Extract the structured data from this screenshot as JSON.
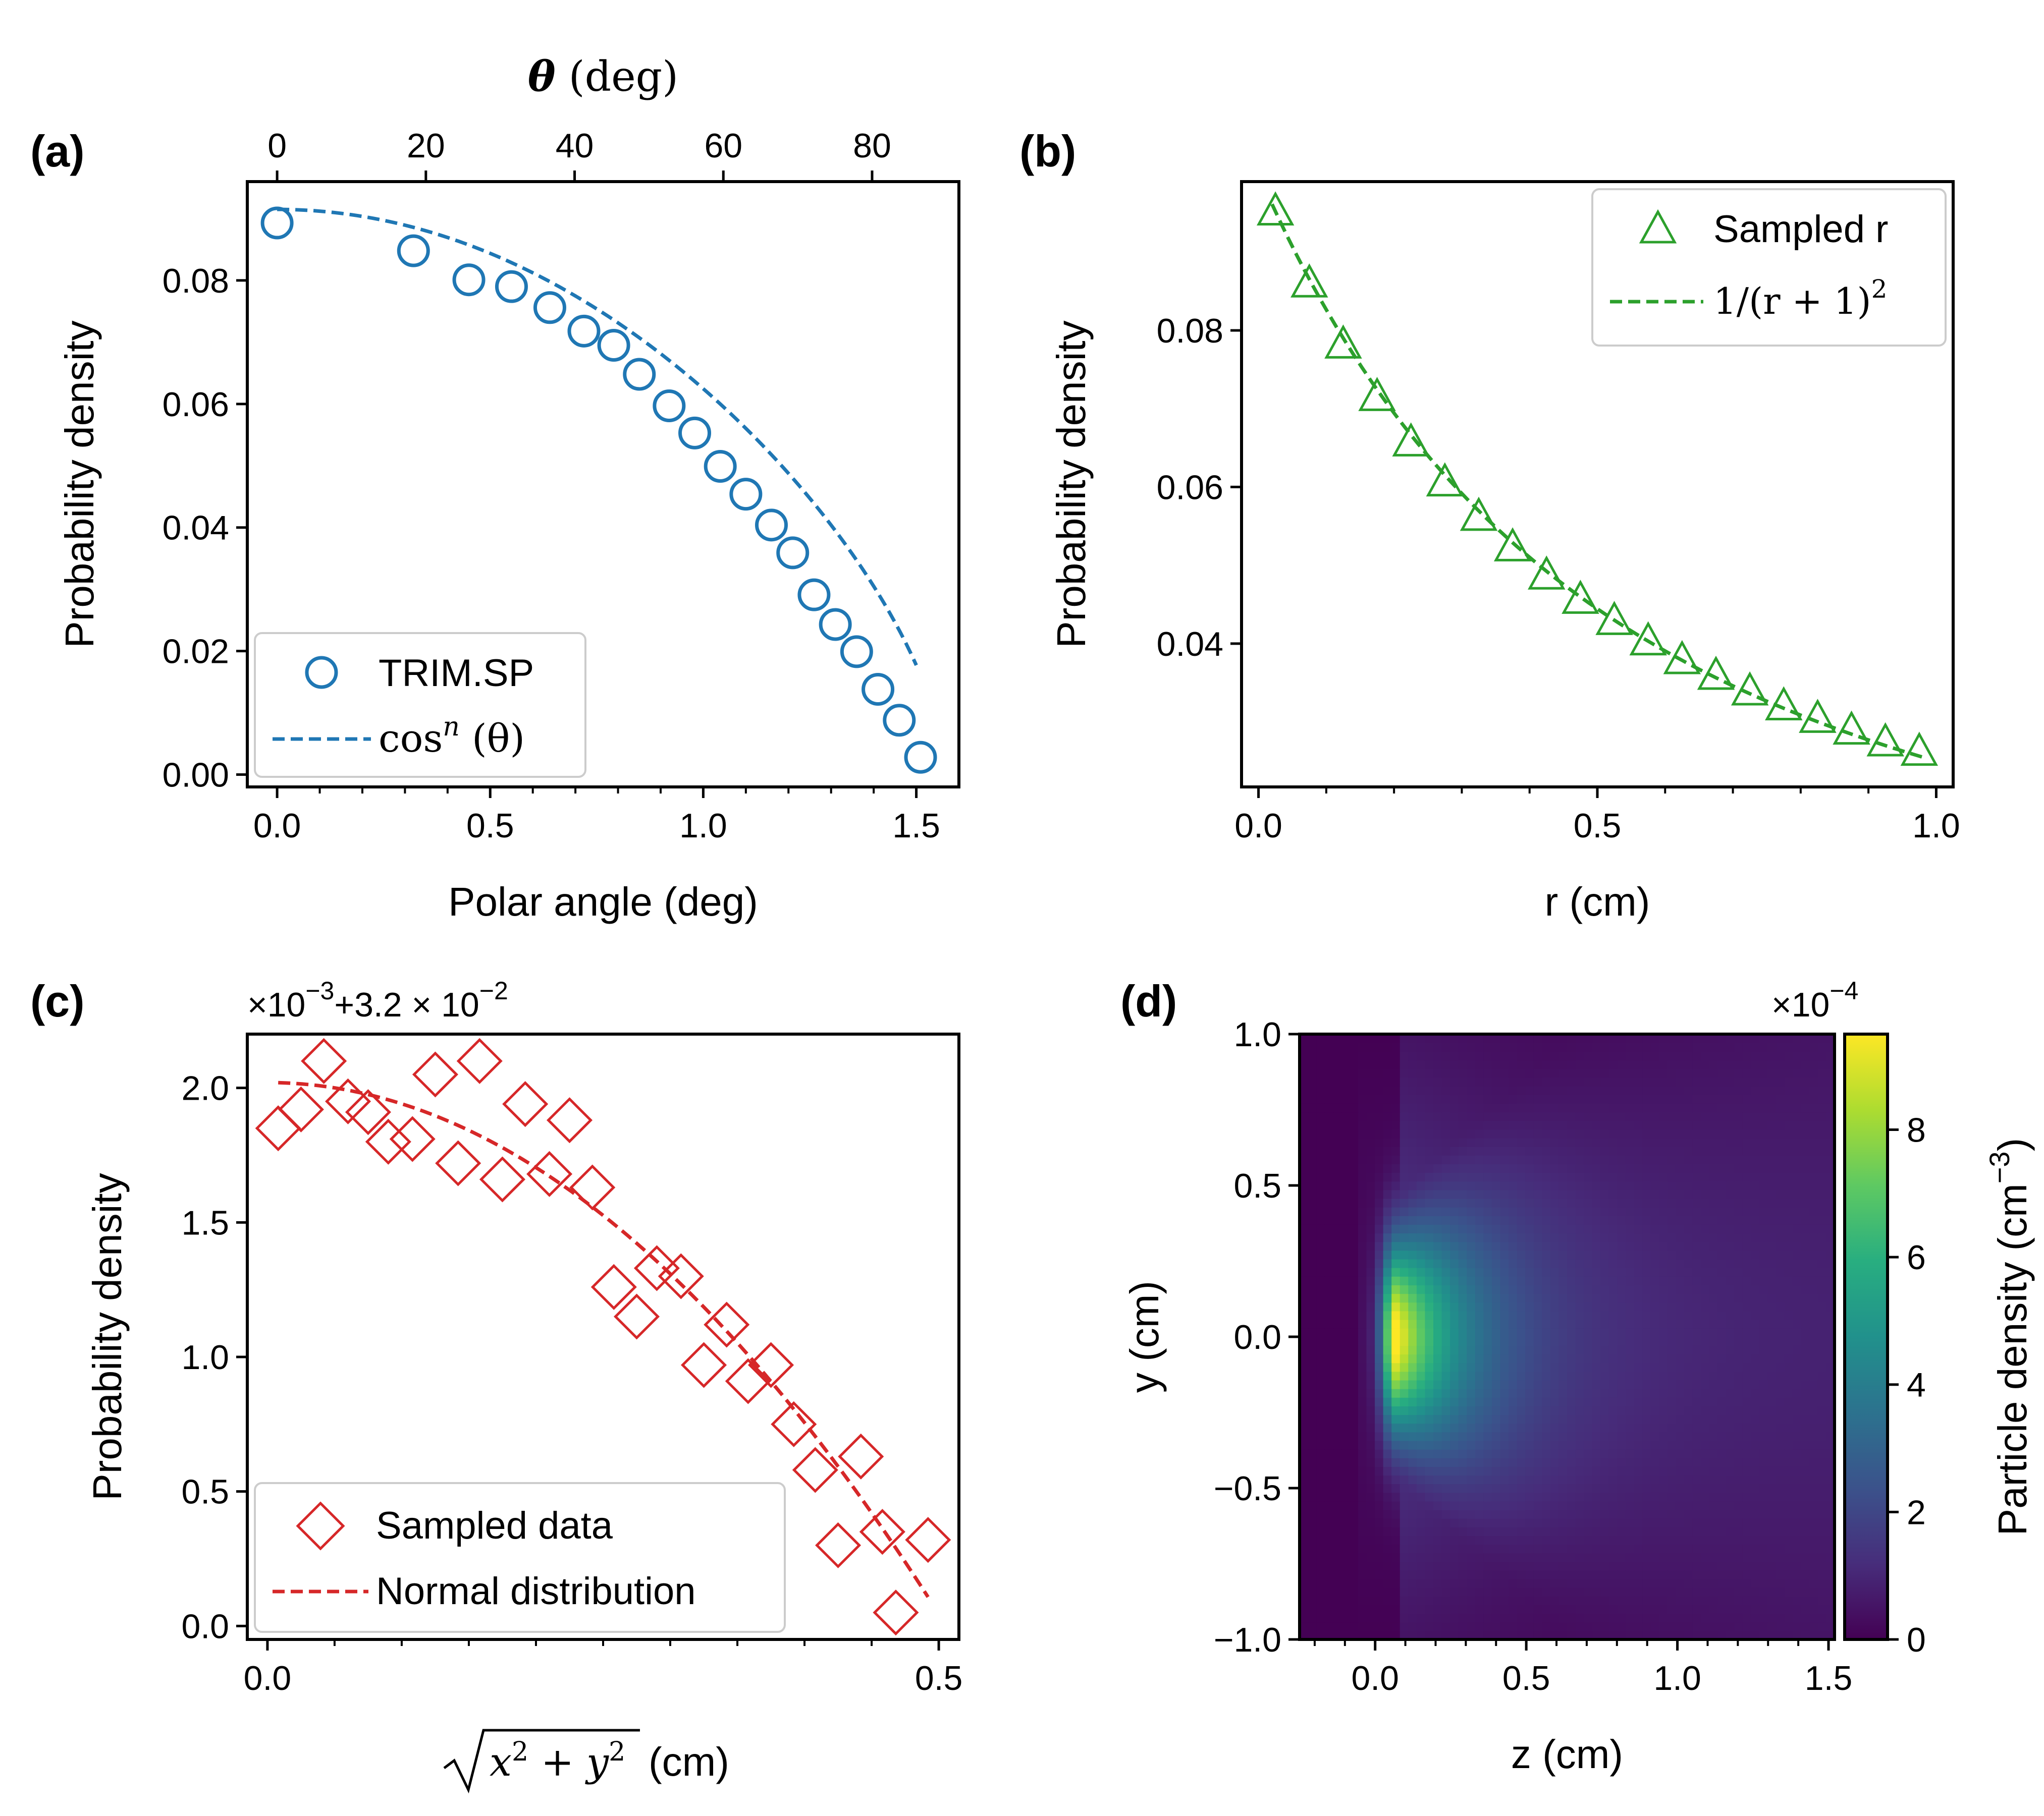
{
  "panels": {
    "a": {
      "label": "(a)",
      "xlabel": "Polar angle (deg)",
      "ylabel": "Probability density",
      "top_xlabel_sym": "θ",
      "top_xlabel_unit": " (deg)",
      "legend_points": "TRIM.SP",
      "legend_line_base": "cos",
      "legend_line_sup": "n",
      "legend_line_tail": " (θ)"
    },
    "b": {
      "label": "(b)",
      "xlabel": "r (cm)",
      "ylabel": "Probability density",
      "legend_points": "Sampled r",
      "legend_line_base": "1/(r + 1)",
      "legend_line_sup": "2"
    },
    "c": {
      "label": "(c)",
      "xlabel_unit": " (cm)",
      "xlabel_sqrt_base": "x",
      "xlabel_sqrt_mid": " + y",
      "ylabel": "Probability density",
      "offset_a": "×10",
      "offset_a_exp": "−3",
      "offset_b": "+3.2 × 10",
      "offset_b_exp": "−2",
      "legend_points": "Sampled data",
      "legend_line": "Normal distribution"
    },
    "d": {
      "label": "(d)",
      "xlabel": "z (cm)",
      "ylabel": "y (cm)",
      "cbar_label_base": "Particle density (cm",
      "cbar_label_exp": "−3",
      "cbar_label_tail": ")",
      "cbar_multiplier": "×10",
      "cbar_multiplier_exp": "−4"
    }
  },
  "chart_data": [
    {
      "panel": "a",
      "type": "scatter",
      "xlabel": "Polar angle (deg)",
      "ylabel": "Probability density",
      "secondary_xlabel": "θ (deg)",
      "xlim": [
        -0.07,
        1.6
      ],
      "ylim": [
        -0.002,
        0.096
      ],
      "xticks": [
        0.0,
        0.5,
        1.0,
        1.5
      ],
      "xtick_labels": [
        "0.0",
        "0.5",
        "1.0",
        "1.5"
      ],
      "yticks": [
        0.0,
        0.02,
        0.04,
        0.06,
        0.08
      ],
      "ytick_labels": [
        "0.00",
        "0.02",
        "0.04",
        "0.06",
        "0.08"
      ],
      "secondary_xticks_deg": [
        0,
        20,
        40,
        60,
        80
      ],
      "secondary_xtick_labels": [
        "0",
        "20",
        "40",
        "60",
        "80"
      ],
      "legend_position": "lower left",
      "color": "#1f77b4",
      "series": [
        {
          "name": "TRIM.SP",
          "marker": "circle",
          "x": [
            0.0,
            0.32,
            0.45,
            0.55,
            0.64,
            0.72,
            0.79,
            0.85,
            0.92,
            0.98,
            1.04,
            1.1,
            1.16,
            1.21,
            1.26,
            1.31,
            1.36,
            1.41,
            1.46,
            1.51
          ],
          "y": [
            0.0893,
            0.0848,
            0.0801,
            0.079,
            0.0756,
            0.0718,
            0.0695,
            0.0648,
            0.0597,
            0.0553,
            0.0499,
            0.0454,
            0.0404,
            0.0359,
            0.0291,
            0.0243,
            0.0199,
            0.0138,
            0.0088,
            0.0028
          ]
        },
        {
          "name": "cosⁿ(θ)",
          "style": "dashed",
          "function": "0.0915*cos(x)^0.62",
          "x_range": [
            0.0,
            1.5
          ]
        }
      ]
    },
    {
      "panel": "b",
      "type": "scatter",
      "xlabel": "r (cm)",
      "ylabel": "Probability density",
      "xlim": [
        -0.025,
        1.025
      ],
      "ylim": [
        0.0217,
        0.099
      ],
      "xticks": [
        0.0,
        0.5,
        1.0
      ],
      "xtick_labels": [
        "0.0",
        "0.5",
        "1.0"
      ],
      "yticks": [
        0.04,
        0.06,
        0.08
      ],
      "ytick_labels": [
        "0.04",
        "0.06",
        "0.08"
      ],
      "legend_position": "upper right",
      "color": "#2ca02c",
      "series": [
        {
          "name": "Sampled r",
          "marker": "triangle",
          "x": [
            0.025,
            0.075,
            0.125,
            0.175,
            0.225,
            0.275,
            0.325,
            0.375,
            0.425,
            0.475,
            0.525,
            0.575,
            0.625,
            0.675,
            0.725,
            0.775,
            0.825,
            0.875,
            0.925,
            0.975
          ],
          "y": [
            0.0953,
            0.0861,
            0.0783,
            0.0716,
            0.0658,
            0.0607,
            0.0563,
            0.0524,
            0.0488,
            0.0457,
            0.043,
            0.0404,
            0.038,
            0.036,
            0.034,
            0.0321,
            0.0305,
            0.029,
            0.0275,
            0.0263
          ]
        },
        {
          "name": "1/(r + 1)²",
          "style": "dashed",
          "function": "0.1/(r+1)^2",
          "x_range": [
            0.02,
            0.98
          ]
        }
      ]
    },
    {
      "panel": "c",
      "type": "scatter",
      "xlabel": "√(x² + y²) (cm)",
      "ylabel": "Probability density",
      "offset_text": "×10⁻³ +3.2 × 10⁻²",
      "xlim": [
        -0.015,
        0.515
      ],
      "ylim": [
        -0.05,
        2.2
      ],
      "xticks": [
        0.0,
        0.5
      ],
      "xtick_labels": [
        "0.0",
        "0.5"
      ],
      "yticks": [
        0.0,
        0.5,
        1.0,
        1.5,
        2.0
      ],
      "ytick_labels": [
        "0.0",
        "0.5",
        "1.0",
        "1.5",
        "2.0"
      ],
      "legend_position": "lower left",
      "color": "#d62728",
      "series": [
        {
          "name": "Sampled data",
          "marker": "diamond",
          "x": [
            0.008,
            0.025,
            0.042,
            0.06,
            0.075,
            0.09,
            0.108,
            0.125,
            0.142,
            0.158,
            0.175,
            0.192,
            0.21,
            0.225,
            0.242,
            0.258,
            0.275,
            0.29,
            0.308,
            0.325,
            0.342,
            0.358,
            0.375,
            0.392,
            0.408,
            0.425,
            0.442,
            0.458,
            0.468,
            0.492
          ],
          "y": [
            1.85,
            1.92,
            2.1,
            1.95,
            1.91,
            1.8,
            1.81,
            2.05,
            1.72,
            2.1,
            1.66,
            1.94,
            1.68,
            1.88,
            1.63,
            1.26,
            1.15,
            1.33,
            1.3,
            0.97,
            1.12,
            0.91,
            0.97,
            0.75,
            0.58,
            0.3,
            0.63,
            0.35,
            0.05,
            0.32
          ]
        },
        {
          "name": "Normal distribution",
          "style": "dashed",
          "function": "2.02 - 7.9*x^2 (approx.)",
          "x_range": [
            0.008,
            0.492
          ]
        }
      ]
    },
    {
      "panel": "d",
      "type": "heatmap",
      "xlabel": "z (cm)",
      "ylabel": "y (cm)",
      "xlim": [
        -0.25,
        1.52
      ],
      "ylim": [
        -1.0,
        1.0
      ],
      "xticks": [
        0.0,
        0.5,
        1.0,
        1.5
      ],
      "xtick_labels": [
        "0.0",
        "0.5",
        "1.0",
        "1.5"
      ],
      "yticks": [
        -1.0,
        -0.5,
        0.0,
        0.5,
        1.0
      ],
      "ytick_labels": [
        "−1.0",
        "−0.5",
        "0.0",
        "0.5",
        "1.0"
      ],
      "colormap": "viridis",
      "colorbar": {
        "label": "Particle density (cm⁻³)",
        "multiplier": "×10⁻⁴",
        "range": [
          0,
          9.5
        ],
        "ticks": [
          0,
          2,
          4,
          6,
          8
        ],
        "tick_labels": [
          "0",
          "2",
          "4",
          "6",
          "8"
        ]
      },
      "peak": {
        "z": 0.07,
        "y": 0.0,
        "value": 9.5
      },
      "description_values": {
        "source_edge_z": -0.05,
        "half_width_y": 0.5
      }
    }
  ]
}
